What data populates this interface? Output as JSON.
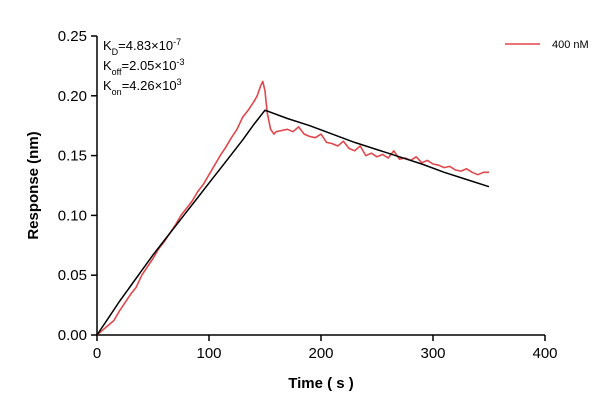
{
  "chart_data": {
    "type": "line",
    "title": "",
    "xlabel": "Time ( s )",
    "ylabel": "Response (nm)",
    "xlim": [
      0,
      400
    ],
    "ylim": [
      0,
      0.25
    ],
    "xticks": [
      0,
      100,
      200,
      300,
      400
    ],
    "xtick_labels": [
      "0",
      "100",
      "200",
      "300",
      "400"
    ],
    "yticks": [
      0.0,
      0.05,
      0.1,
      0.15,
      0.2,
      0.25
    ],
    "ytick_labels": [
      "0.00",
      "0.05",
      "0.10",
      "0.15",
      "0.20",
      "0.25"
    ],
    "grid": false,
    "legend_position": "top-right",
    "annotations": [
      {
        "base": "K",
        "sub": "D",
        "rest": "=4.83×10",
        "sup": "-7"
      },
      {
        "base": "K",
        "sub": "off",
        "rest": "=2.05×10",
        "sup": "-3"
      },
      {
        "base": "K",
        "sub": "on",
        "rest": "=4.26×10",
        "sup": "3"
      }
    ],
    "series": [
      {
        "name": "400 nM",
        "color": "#e0474c",
        "x": [
          0,
          5,
          10,
          15,
          20,
          25,
          30,
          35,
          40,
          45,
          50,
          55,
          60,
          65,
          70,
          75,
          80,
          85,
          90,
          95,
          100,
          105,
          110,
          115,
          120,
          125,
          130,
          135,
          140,
          143,
          146,
          148,
          150,
          152,
          155,
          158,
          160,
          165,
          170,
          175,
          180,
          185,
          190,
          195,
          200,
          205,
          210,
          215,
          220,
          225,
          230,
          235,
          240,
          245,
          250,
          255,
          260,
          265,
          270,
          275,
          280,
          285,
          290,
          295,
          300,
          305,
          310,
          315,
          320,
          325,
          330,
          335,
          340,
          345,
          350
        ],
        "y": [
          0.0,
          0.004,
          0.008,
          0.012,
          0.02,
          0.027,
          0.034,
          0.04,
          0.05,
          0.057,
          0.064,
          0.072,
          0.078,
          0.085,
          0.092,
          0.1,
          0.106,
          0.112,
          0.12,
          0.126,
          0.134,
          0.142,
          0.15,
          0.157,
          0.165,
          0.172,
          0.182,
          0.188,
          0.195,
          0.2,
          0.208,
          0.212,
          0.204,
          0.186,
          0.172,
          0.168,
          0.17,
          0.171,
          0.172,
          0.17,
          0.174,
          0.168,
          0.166,
          0.165,
          0.168,
          0.161,
          0.16,
          0.158,
          0.162,
          0.156,
          0.154,
          0.158,
          0.15,
          0.152,
          0.149,
          0.151,
          0.148,
          0.154,
          0.147,
          0.148,
          0.146,
          0.149,
          0.144,
          0.146,
          0.143,
          0.142,
          0.14,
          0.141,
          0.138,
          0.137,
          0.139,
          0.136,
          0.134,
          0.136,
          0.136
        ]
      },
      {
        "name": "",
        "color": "#000000",
        "x": [
          0,
          10,
          20,
          30,
          40,
          50,
          60,
          70,
          80,
          90,
          100,
          110,
          120,
          130,
          140,
          150,
          170,
          190,
          210,
          230,
          250,
          270,
          290,
          310,
          330,
          350
        ],
        "y": [
          0.0,
          0.014,
          0.028,
          0.041,
          0.054,
          0.067,
          0.079,
          0.091,
          0.103,
          0.115,
          0.127,
          0.139,
          0.151,
          0.163,
          0.176,
          0.188,
          0.181,
          0.175,
          0.168,
          0.161,
          0.155,
          0.149,
          0.143,
          0.136,
          0.13,
          0.124
        ]
      }
    ]
  }
}
